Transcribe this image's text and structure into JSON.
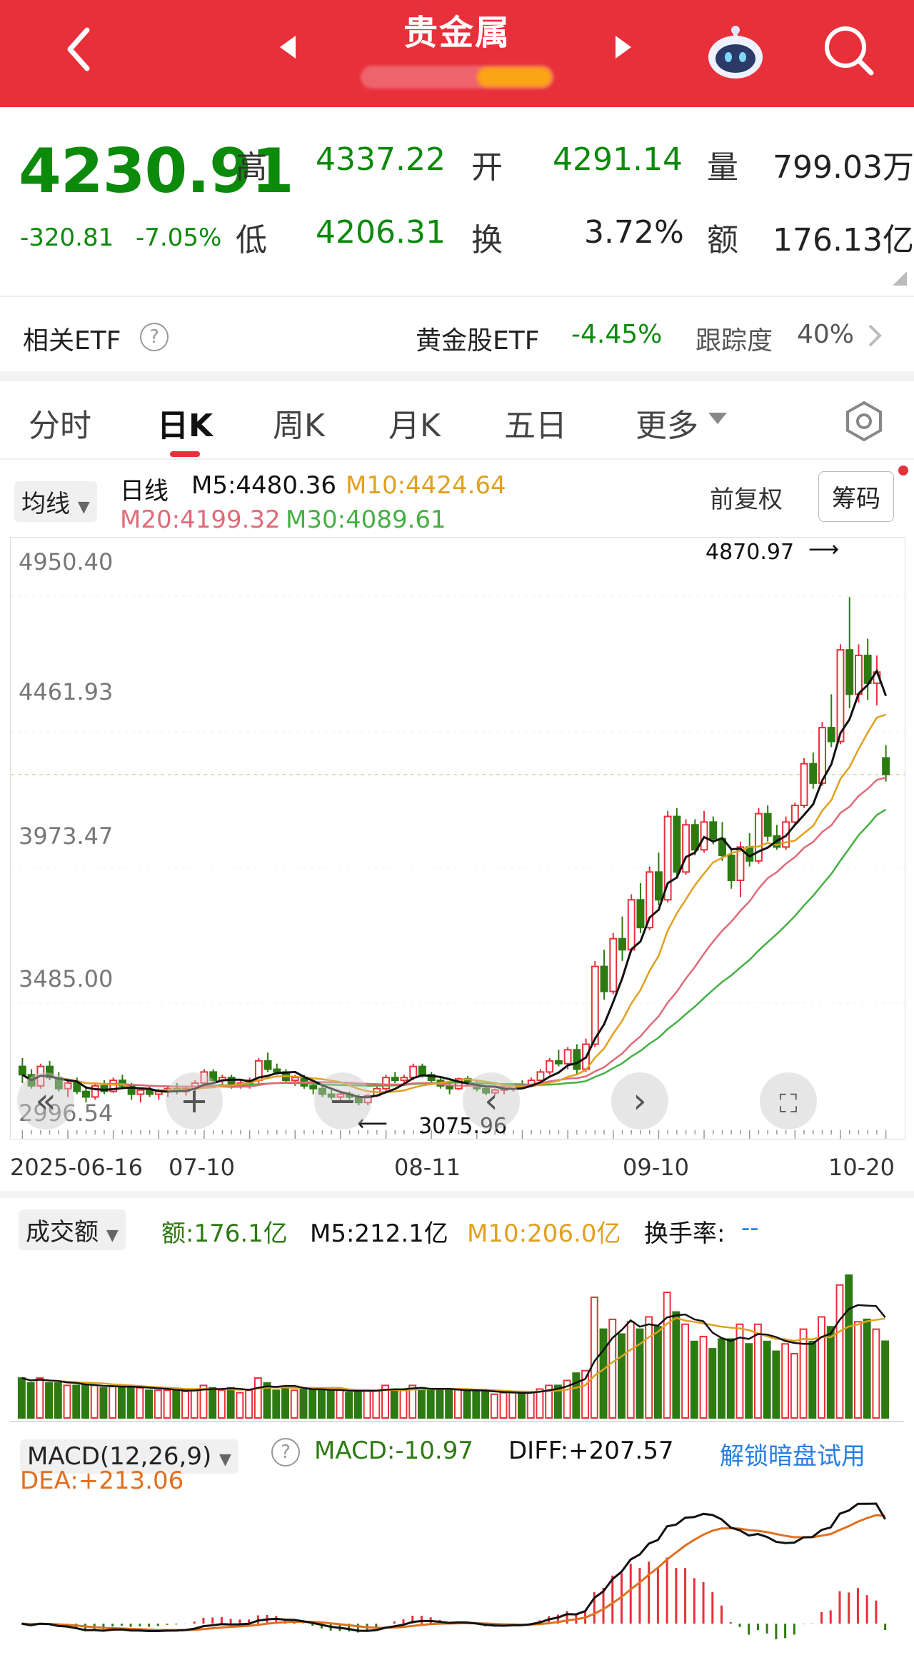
{
  "header": {
    "title": "贵金属",
    "back_icon": "chevron-left-icon",
    "prev_icon": "triangle-left-icon",
    "next_icon": "triangle-right-icon",
    "robot_icon": "robot-icon",
    "search_icon": "search-icon"
  },
  "quote": {
    "price": "4230.91",
    "change": "-320.81",
    "change_pct": "-7.05%",
    "high_label": "高",
    "high": "4337.22",
    "open_label": "开",
    "open": "4291.14",
    "volume_label": "量",
    "volume": "799.03万",
    "low_label": "低",
    "low": "4206.31",
    "turnover_label": "换",
    "turnover": "3.72%",
    "amount_label": "额",
    "amount": "176.13亿"
  },
  "etf": {
    "label": "相关ETF",
    "name": "黄金股ETF",
    "change": "-4.45%",
    "track_label": "跟踪度",
    "track_value": "40%"
  },
  "tabs": [
    "分时",
    "日K",
    "周K",
    "月K",
    "五日",
    "更多"
  ],
  "kline": {
    "indicator": "均线",
    "period": "日线",
    "m5": "M5:4480.36",
    "m10": "M10:4424.64",
    "m20": "M20:4199.32",
    "m30": "M30:4089.61",
    "adjust": "前复权",
    "chip_button": "筹码",
    "y_labels": [
      "4950.40",
      "4461.93",
      "3973.47",
      "3485.00",
      "2996.54"
    ],
    "x_labels": [
      "2025-06-16",
      "07-10",
      "08-11",
      "09-10",
      "10-20"
    ],
    "max_marker": "4870.97",
    "min_marker": "3075.96",
    "colors": {
      "up": "#e8303b",
      "down": "#2d7a12",
      "m5": "#111111",
      "m10": "#e0a020",
      "m20": "#e06a78",
      "m30": "#44b044"
    }
  },
  "volume_panel": {
    "indicator": "成交额",
    "amount": "额:176.1亿",
    "m5": "M5:212.1亿",
    "m10": "M10:206.0亿",
    "turnover_label": "换手率:",
    "turnover_value": "--"
  },
  "macd_panel": {
    "indicator": "MACD(12,26,9)",
    "macd": "MACD:-10.97",
    "diff": "DIFF:+207.57",
    "dea": "DEA:+213.06",
    "unlock": "解锁暗盘试用"
  },
  "chart_data": {
    "type": "candlestick",
    "y_range": [
      2996.54,
      4950.4
    ],
    "start_date": "2025-06-16",
    "end_date": "2025-10-20",
    "candles": [
      [
        3180,
        3210,
        3120,
        3150
      ],
      [
        3150,
        3170,
        3100,
        3110
      ],
      [
        3110,
        3190,
        3100,
        3180
      ],
      [
        3180,
        3200,
        3130,
        3140
      ],
      [
        3140,
        3160,
        3090,
        3100
      ],
      [
        3100,
        3130,
        3070,
        3120
      ],
      [
        3120,
        3140,
        3080,
        3090
      ],
      [
        3090,
        3110,
        3050,
        3070
      ],
      [
        3070,
        3120,
        3060,
        3110
      ],
      [
        3110,
        3130,
        3080,
        3090
      ],
      [
        3090,
        3140,
        3085,
        3130
      ],
      [
        3130,
        3150,
        3100,
        3110
      ],
      [
        3110,
        3120,
        3060,
        3080
      ],
      [
        3080,
        3100,
        3050,
        3095
      ],
      [
        3095,
        3110,
        3070,
        3080
      ],
      [
        3080,
        3100,
        3060,
        3090
      ],
      [
        3090,
        3110,
        3070,
        3100
      ],
      [
        3100,
        3120,
        3080,
        3090
      ],
      [
        3090,
        3110,
        3075,
        3100
      ],
      [
        3100,
        3130,
        3090,
        3120
      ],
      [
        3120,
        3170,
        3110,
        3160
      ],
      [
        3160,
        3170,
        3120,
        3130
      ],
      [
        3130,
        3150,
        3110,
        3140
      ],
      [
        3140,
        3150,
        3100,
        3110
      ],
      [
        3110,
        3130,
        3100,
        3120
      ],
      [
        3120,
        3140,
        3100,
        3130
      ],
      [
        3130,
        3210,
        3120,
        3200
      ],
      [
        3200,
        3230,
        3160,
        3170
      ],
      [
        3170,
        3190,
        3150,
        3160
      ],
      [
        3160,
        3170,
        3120,
        3130
      ],
      [
        3130,
        3150,
        3110,
        3140
      ],
      [
        3140,
        3150,
        3100,
        3110
      ],
      [
        3110,
        3120,
        3080,
        3100
      ],
      [
        3100,
        3110,
        3070,
        3080
      ],
      [
        3080,
        3100,
        3060,
        3070
      ],
      [
        3070,
        3090,
        3050,
        3080
      ],
      [
        3080,
        3090,
        3060,
        3070
      ],
      [
        3070,
        3080,
        3040,
        3050
      ],
      [
        3050,
        3080,
        3040,
        3075
      ],
      [
        3075,
        3110,
        3070,
        3100
      ],
      [
        3100,
        3150,
        3090,
        3140
      ],
      [
        3140,
        3160,
        3120,
        3130
      ],
      [
        3130,
        3150,
        3110,
        3140
      ],
      [
        3140,
        3190,
        3130,
        3180
      ],
      [
        3180,
        3190,
        3140,
        3150
      ],
      [
        3150,
        3160,
        3120,
        3130
      ],
      [
        3130,
        3140,
        3100,
        3110
      ],
      [
        3110,
        3120,
        3080,
        3100
      ],
      [
        3100,
        3140,
        3095,
        3135
      ],
      [
        3135,
        3145,
        3110,
        3120
      ],
      [
        3120,
        3130,
        3090,
        3100
      ],
      [
        3100,
        3110,
        3076,
        3085
      ],
      [
        3085,
        3100,
        3076,
        3095
      ],
      [
        3095,
        3110,
        3080,
        3100
      ],
      [
        3100,
        3120,
        3090,
        3115
      ],
      [
        3115,
        3130,
        3100,
        3110
      ],
      [
        3110,
        3140,
        3105,
        3130
      ],
      [
        3130,
        3170,
        3125,
        3160
      ],
      [
        3160,
        3210,
        3150,
        3200
      ],
      [
        3200,
        3240,
        3180,
        3190
      ],
      [
        3190,
        3250,
        3170,
        3240
      ],
      [
        3240,
        3260,
        3150,
        3170
      ],
      [
        3170,
        3280,
        3160,
        3260
      ],
      [
        3260,
        3560,
        3250,
        3540
      ],
      [
        3540,
        3600,
        3420,
        3450
      ],
      [
        3450,
        3660,
        3440,
        3640
      ],
      [
        3640,
        3720,
        3560,
        3600
      ],
      [
        3600,
        3800,
        3590,
        3780
      ],
      [
        3780,
        3840,
        3660,
        3680
      ],
      [
        3680,
        3900,
        3670,
        3880
      ],
      [
        3880,
        3950,
        3760,
        3780
      ],
      [
        3780,
        4100,
        3770,
        4080
      ],
      [
        4080,
        4110,
        3860,
        3880
      ],
      [
        3880,
        4070,
        3870,
        4050
      ],
      [
        4050,
        4070,
        3940,
        3960
      ],
      [
        3960,
        4100,
        3950,
        4060
      ],
      [
        4060,
        4080,
        3980,
        4000
      ],
      [
        4000,
        4060,
        3920,
        3940
      ],
      [
        3940,
        3960,
        3820,
        3850
      ],
      [
        3850,
        3990,
        3790,
        3970
      ],
      [
        3970,
        4020,
        3900,
        3920
      ],
      [
        3920,
        4110,
        3910,
        4090
      ],
      [
        4090,
        4120,
        3990,
        4010
      ],
      [
        4010,
        4050,
        3960,
        3970
      ],
      [
        3970,
        4080,
        3960,
        4060
      ],
      [
        4060,
        4130,
        4050,
        4120
      ],
      [
        4120,
        4290,
        4110,
        4270
      ],
      [
        4270,
        4310,
        4180,
        4200
      ],
      [
        4200,
        4420,
        4190,
        4400
      ],
      [
        4400,
        4520,
        4330,
        4350
      ],
      [
        4350,
        4700,
        4340,
        4680
      ],
      [
        4680,
        4870,
        4470,
        4520
      ],
      [
        4520,
        4700,
        4490,
        4660
      ],
      [
        4660,
        4720,
        4500,
        4560
      ],
      [
        4560,
        4660,
        4480,
        4600
      ],
      [
        4291,
        4337,
        4206,
        4231
      ]
    ]
  }
}
